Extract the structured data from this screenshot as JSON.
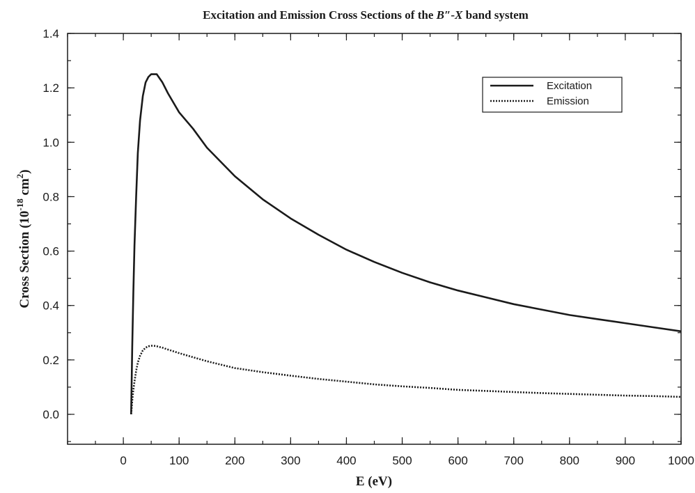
{
  "chart_data": {
    "type": "line",
    "title": {
      "prefix": "Excitation and Emission Cross Sections of the ",
      "italic_b": "B",
      "prime": "″",
      "dash": "-",
      "italic_x": "X",
      "suffix": " band system"
    },
    "xlabel": "E (eV)",
    "ylabel": {
      "main": "Cross Section (10",
      "exp1": "-18",
      "mid": " cm",
      "exp2": "2",
      "end": ")"
    },
    "xlim": [
      -100,
      1000
    ],
    "ylim": [
      -0.11,
      1.4
    ],
    "xticks": [
      0,
      100,
      200,
      300,
      400,
      500,
      600,
      700,
      800,
      900,
      1000
    ],
    "xticks_minor": [
      -100,
      -50,
      0,
      50,
      100,
      150,
      200,
      250,
      300,
      350,
      400,
      450,
      500,
      550,
      600,
      650,
      700,
      750,
      800,
      850,
      900,
      950,
      1000
    ],
    "yticks": [
      0.0,
      0.2,
      0.4,
      0.6,
      0.8,
      1.0,
      1.2,
      1.4
    ],
    "yticks_minor": [
      -0.1,
      0.0,
      0.1,
      0.2,
      0.3,
      0.4,
      0.5,
      0.6,
      0.7,
      0.8,
      0.9,
      1.0,
      1.1,
      1.2,
      1.3,
      1.4
    ],
    "ytick_labels": [
      "0.0",
      "0.2",
      "0.4",
      "0.6",
      "0.8",
      "1.0",
      "1.2",
      "1.4"
    ],
    "grid": false,
    "legend_position": "top-right",
    "series": [
      {
        "name": "Excitation",
        "style": "solid",
        "color": "#1a1a1a",
        "x": [
          14,
          16,
          18,
          20,
          23,
          26,
          30,
          35,
          40,
          45,
          50,
          55,
          60,
          70,
          80,
          100,
          125,
          150,
          200,
          250,
          300,
          350,
          400,
          450,
          500,
          550,
          600,
          650,
          700,
          750,
          800,
          850,
          900,
          950,
          1000
        ],
        "y": [
          0.0,
          0.25,
          0.45,
          0.62,
          0.8,
          0.96,
          1.08,
          1.17,
          1.22,
          1.24,
          1.25,
          1.25,
          1.25,
          1.22,
          1.18,
          1.11,
          1.05,
          0.98,
          0.875,
          0.79,
          0.72,
          0.66,
          0.605,
          0.56,
          0.52,
          0.485,
          0.455,
          0.43,
          0.405,
          0.385,
          0.365,
          0.35,
          0.335,
          0.32,
          0.305
        ]
      },
      {
        "name": "Emission",
        "style": "dotted",
        "color": "#1a1a1a",
        "x": [
          14,
          16,
          18,
          20,
          23,
          26,
          30,
          35,
          40,
          45,
          50,
          55,
          60,
          70,
          80,
          100,
          125,
          150,
          200,
          250,
          300,
          350,
          400,
          450,
          500,
          550,
          600,
          650,
          700,
          750,
          800,
          850,
          900,
          950,
          1000
        ],
        "y": [
          0.0,
          0.05,
          0.09,
          0.12,
          0.16,
          0.19,
          0.215,
          0.235,
          0.245,
          0.25,
          0.252,
          0.252,
          0.25,
          0.245,
          0.238,
          0.225,
          0.21,
          0.195,
          0.17,
          0.155,
          0.142,
          0.13,
          0.12,
          0.11,
          0.103,
          0.097,
          0.09,
          0.086,
          0.082,
          0.078,
          0.075,
          0.072,
          0.069,
          0.067,
          0.064
        ]
      }
    ]
  }
}
